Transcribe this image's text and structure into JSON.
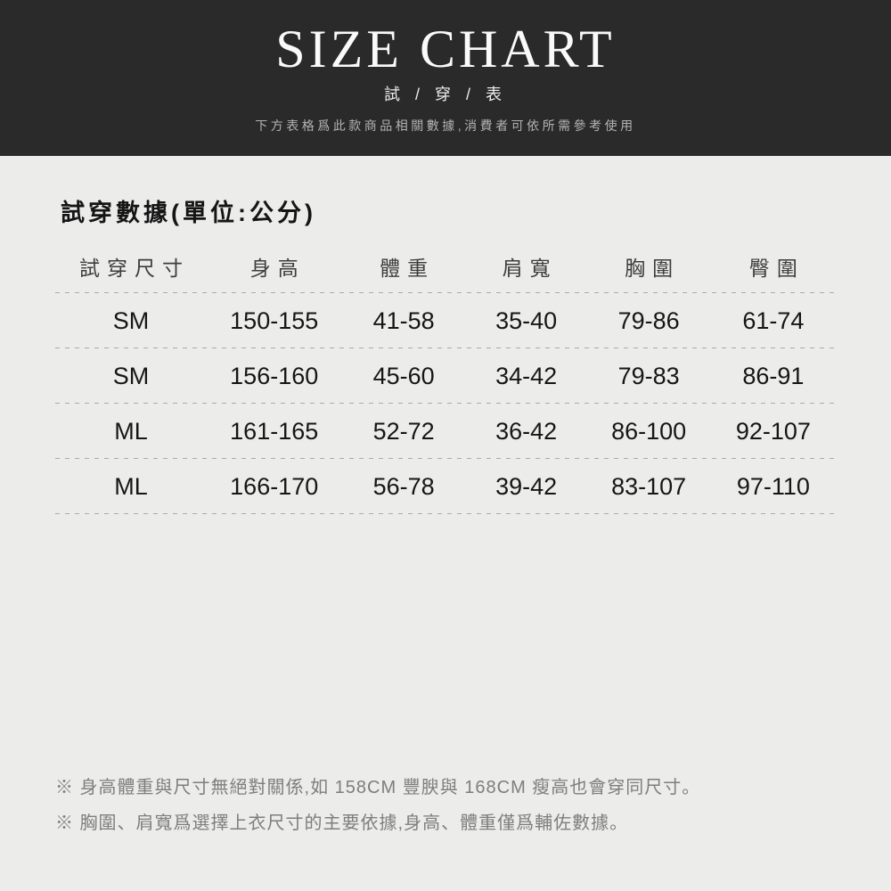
{
  "colors": {
    "banner_bg": "#2b2a2a",
    "body_bg": "#ececeb",
    "title_text": "#fafafa",
    "banner_description_text": "#b3b3b3",
    "column_header_text": "#3d3d3d",
    "table_text": "#161616",
    "divider_dashed": "#ababab",
    "note_text": "#7e7e7e"
  },
  "header": {
    "title": "SIZE CHART",
    "subtitle": "試 / 穿 / 表",
    "description": "下方表格爲此款商品相關數據,消費者可依所需參考使用"
  },
  "chart_data": {
    "type": "table",
    "title": "試穿數據(單位:公分)",
    "columns": [
      "試穿尺寸",
      "身高",
      "體重",
      "肩寬",
      "胸圍",
      "臀圍"
    ],
    "rows": [
      [
        "SM",
        "150-155",
        "41-58",
        "35-40",
        "79-86",
        "61-74"
      ],
      [
        "SM",
        "156-160",
        "45-60",
        "34-42",
        "79-83",
        "86-91"
      ],
      [
        "ML",
        "161-165",
        "52-72",
        "36-42",
        "86-100",
        "92-107"
      ],
      [
        "ML",
        "166-170",
        "56-78",
        "39-42",
        "83-107",
        "97-110"
      ]
    ]
  },
  "notes": [
    "※ 身高體重與尺寸無絕對關係,如 158CM 豐腴與 168CM 瘦高也會穿同尺寸。",
    "※ 胸圍、肩寬爲選擇上衣尺寸的主要依據,身高、體重僅爲輔佐數據。"
  ]
}
